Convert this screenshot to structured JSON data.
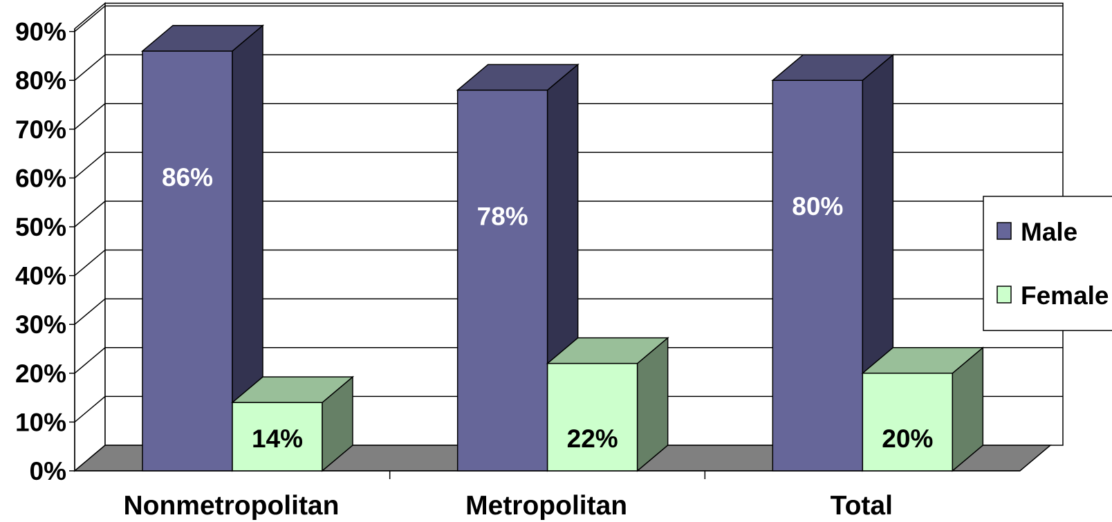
{
  "chart_data": {
    "type": "bar",
    "style": "3d-clustered-column",
    "categories": [
      "Nonmetropolitan",
      "Metropolitan",
      "Total"
    ],
    "series": [
      {
        "name": "Male",
        "values": [
          86,
          78,
          80
        ],
        "labels": [
          "86%",
          "78%",
          "80%"
        ],
        "color": "#666699"
      },
      {
        "name": "Female",
        "values": [
          14,
          22,
          20
        ],
        "labels": [
          "14%",
          "22%",
          "20%"
        ],
        "color": "#CCFFCC"
      }
    ],
    "yticks": [
      "0%",
      "10%",
      "20%",
      "30%",
      "40%",
      "50%",
      "60%",
      "70%",
      "80%",
      "90%"
    ],
    "ylim": [
      0,
      90
    ],
    "grid": true,
    "legend_position": "right",
    "colors": {
      "male_side": "#333350",
      "male_top": "#4D4D73",
      "female_side": "#668066",
      "female_top": "#99BF99",
      "floor": "#808080"
    }
  }
}
